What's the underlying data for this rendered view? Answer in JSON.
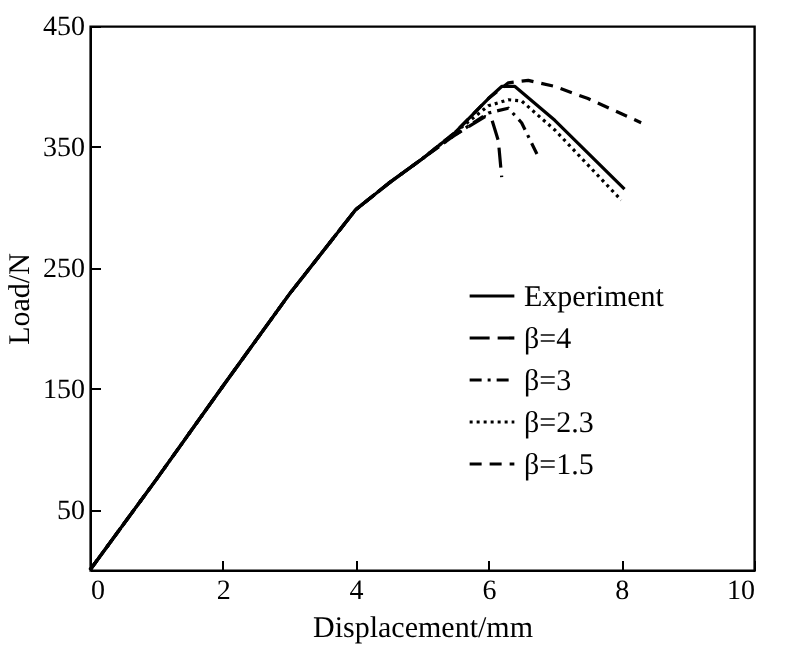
{
  "chart_data": {
    "type": "line",
    "xlabel": "Displacement/mm",
    "ylabel": "Load/N",
    "xlim": [
      0,
      10
    ],
    "xticks": [
      0,
      2,
      4,
      6,
      8,
      10
    ],
    "ylim": [
      0,
      450
    ],
    "yticks": [
      50,
      150,
      250,
      350,
      450
    ],
    "grid": false,
    "legend": "bottom right",
    "marker": "none",
    "series": [
      {
        "name": "Experiment",
        "color": "#000000",
        "line_style": "solid",
        "x": [
          0,
          1,
          2,
          3,
          4,
          4.5,
          5,
          5.5,
          6,
          6.2,
          6.4,
          7,
          8.05
        ],
        "values": [
          0,
          75,
          152,
          228,
          298,
          320,
          340,
          362,
          390,
          400,
          400,
          372,
          315
        ]
      },
      {
        "name": "β=4",
        "color": "#000000",
        "line_style": "longdash",
        "x": [
          0,
          1,
          2,
          3,
          4,
          4.5,
          5,
          5.5,
          5.95,
          6.05,
          6.15,
          6.2
        ],
        "values": [
          0,
          75,
          152,
          228,
          298,
          320,
          340,
          360,
          375,
          373,
          355,
          325
        ]
      },
      {
        "name": "β=3",
        "color": "#000000",
        "line_style": "dashdot",
        "x": [
          0,
          1,
          2,
          3,
          4,
          4.5,
          5,
          5.5,
          6,
          6.3,
          6.5,
          6.75
        ],
        "values": [
          0,
          75,
          152,
          228,
          298,
          320,
          340,
          360,
          378,
          382,
          370,
          342
        ]
      },
      {
        "name": "β=2.3",
        "color": "#000000",
        "line_style": "dotted",
        "x": [
          0,
          1,
          2,
          3,
          4,
          4.5,
          5,
          5.5,
          6,
          6.3,
          6.5,
          7,
          8
        ],
        "values": [
          0,
          75,
          152,
          228,
          298,
          320,
          340,
          362,
          384,
          389,
          388,
          364,
          306
        ]
      },
      {
        "name": "β=1.5",
        "color": "#000000",
        "line_style": "dashed",
        "x": [
          0,
          1,
          2,
          3,
          4,
          4.5,
          5,
          5.5,
          6,
          6.3,
          6.6,
          7,
          7.5,
          8.3
        ],
        "values": [
          0,
          75,
          152,
          228,
          298,
          320,
          340,
          362,
          390,
          403,
          405,
          400,
          390,
          370
        ]
      }
    ]
  }
}
